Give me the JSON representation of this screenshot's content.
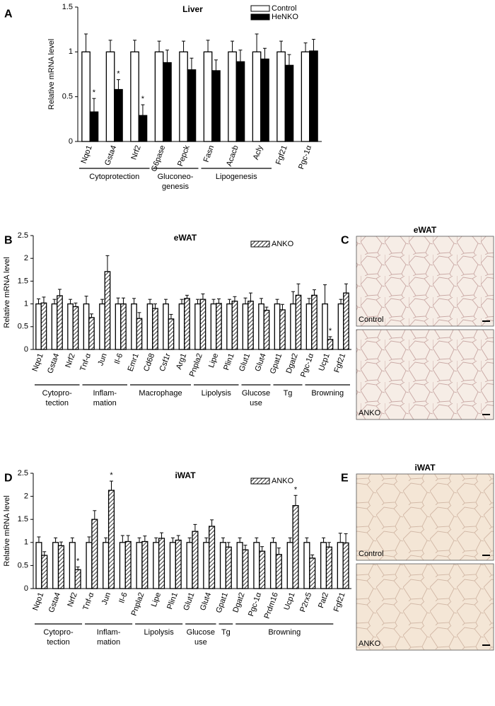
{
  "chart_data": [
    {
      "type": "bar",
      "panel": "A",
      "title": "Liver",
      "y_label": "Relative mRNA level",
      "categories": [
        "Nqo1",
        "Gsta4",
        "Nrf2",
        "G6pase",
        "Pepck",
        "Fasn",
        "Acacb",
        "Acly",
        "Fgf21",
        "Pgc-1α"
      ],
      "series": [
        {
          "name": "Control",
          "color": "#ffffff",
          "hatch": false,
          "values": [
            1,
            1,
            1,
            1,
            1,
            1,
            1,
            1,
            1,
            1
          ],
          "errors": [
            0.2,
            0.13,
            0.13,
            0.12,
            0.12,
            0.13,
            0.12,
            0.2,
            0.12,
            0.1
          ],
          "marks": [
            null,
            null,
            null,
            null,
            null,
            null,
            null,
            null,
            null,
            null
          ]
        },
        {
          "name": "HeNKO",
          "color": "#000000",
          "hatch": false,
          "values": [
            0.33,
            0.58,
            0.29,
            0.88,
            0.8,
            0.79,
            0.89,
            0.92,
            0.85,
            1.01
          ],
          "errors": [
            0.15,
            0.11,
            0.12,
            0.14,
            0.13,
            0.12,
            0.13,
            0.12,
            0.12,
            0.13
          ],
          "marks": [
            "*",
            "*",
            "*",
            null,
            null,
            null,
            null,
            null,
            null,
            null
          ]
        }
      ],
      "groups": [
        {
          "label": [
            "Cytoprotection"
          ],
          "first": 0,
          "last": 2
        },
        {
          "label": [
            "Gluconeo-",
            "genesis"
          ],
          "first": 3,
          "last": 4
        },
        {
          "label": [
            "Lipogenesis"
          ],
          "first": 5,
          "last": 7
        }
      ],
      "ylim": [
        0,
        1.5
      ],
      "yticks": [
        0,
        0.5,
        1,
        1.5
      ],
      "legend": "upper right"
    },
    {
      "type": "bar",
      "panel": "B",
      "title": "eWAT",
      "y_label": "Relative mRNA level",
      "categories": [
        "Nqo1",
        "Gsta4",
        "Nrf2",
        "Tnf-α",
        "Jun",
        "Il-6",
        "Emr1",
        "Cd68",
        "Csf1r",
        "Arg1",
        "Pnpla2",
        "Lipe",
        "Plin1",
        "Glut1",
        "Glut4",
        "Gpat1",
        "Dgat2",
        "Pgc-1α",
        "Ucp1",
        "Fgf21"
      ],
      "series": [
        {
          "color": "#ffffff",
          "hatch": false,
          "values": [
            1,
            1,
            1,
            1,
            1,
            1,
            1,
            1,
            1,
            1,
            1,
            1,
            1,
            1,
            1,
            1,
            1,
            1,
            1,
            1
          ],
          "errors": [
            0.11,
            0.1,
            0.1,
            0.17,
            0.1,
            0.13,
            0.12,
            0.1,
            0.1,
            0.1,
            0.1,
            0.1,
            0.1,
            0.13,
            0.12,
            0.1,
            0.27,
            0.12,
            0.42,
            0.1
          ],
          "marks": [
            null,
            null,
            null,
            null,
            null,
            null,
            null,
            null,
            null,
            null,
            null,
            null,
            null,
            null,
            null,
            null,
            null,
            null,
            null,
            null
          ]
        },
        {
          "name": "ANKO",
          "color": "#ffffff",
          "hatch": true,
          "values": [
            1.02,
            1.18,
            0.94,
            0.7,
            1.71,
            1,
            0.68,
            0.9,
            0.67,
            1.12,
            1.1,
            1.01,
            1.06,
            1.06,
            0.86,
            0.87,
            1.19,
            1.19,
            0.22,
            1.24
          ],
          "errors": [
            0.13,
            0.14,
            0.08,
            0.08,
            0.35,
            0.13,
            0.13,
            0.1,
            0.1,
            0.07,
            0.12,
            0.1,
            0.1,
            0.18,
            0.07,
            0.12,
            0.25,
            0.12,
            0.06,
            0.2
          ],
          "marks": [
            null,
            null,
            null,
            null,
            null,
            null,
            null,
            null,
            null,
            null,
            null,
            null,
            null,
            null,
            null,
            null,
            null,
            null,
            "*",
            null
          ]
        }
      ],
      "groups": [
        {
          "label": [
            "Cytopro-",
            "tection"
          ],
          "first": 0,
          "last": 2
        },
        {
          "label": [
            "Inflam-",
            "mation"
          ],
          "first": 3,
          "last": 5
        },
        {
          "label": [
            "Macrophage"
          ],
          "first": 6,
          "last": 9
        },
        {
          "label": [
            "Lipolysis"
          ],
          "first": 10,
          "last": 12
        },
        {
          "label": [
            "Glucose",
            "use"
          ],
          "first": 13,
          "last": 14
        },
        {
          "label": [
            "Tg"
          ],
          "first": 15,
          "last": 16
        },
        {
          "label": [
            "Browning"
          ],
          "first": 17,
          "last": 19
        }
      ],
      "ylim": [
        0,
        2.5
      ],
      "yticks": [
        0,
        0.5,
        1,
        1.5,
        2,
        2.5
      ],
      "legend": "upper right"
    },
    {
      "type": "bar",
      "panel": "D",
      "title": "iWAT",
      "y_label": "Relative mRNA level",
      "categories": [
        "Nqo1",
        "Gsta4",
        "Nrf2",
        "Tnf-α",
        "Jun",
        "Il-6",
        "Pnpla2",
        "Lipe",
        "Plin1",
        "Glut1",
        "Glut4",
        "Gpat1",
        "Dgat2",
        "Pgc-1α",
        "Prdm16",
        "Ucp1",
        "P2rx5",
        "Pat2",
        "Fgf21"
      ],
      "series": [
        {
          "color": "#ffffff",
          "hatch": false,
          "values": [
            1,
            1,
            1,
            1,
            1,
            1,
            1,
            1,
            1,
            1,
            1,
            1,
            1,
            1,
            1,
            1,
            1,
            1,
            1
          ],
          "errors": [
            0.12,
            0.1,
            0.1,
            0.12,
            0.1,
            0.15,
            0.1,
            0.1,
            0.1,
            0.1,
            0.1,
            0.1,
            0.1,
            0.1,
            0.1,
            0.1,
            0.1,
            0.1,
            0.2
          ],
          "marks": [
            null,
            null,
            null,
            null,
            null,
            null,
            null,
            null,
            null,
            null,
            null,
            null,
            null,
            null,
            null,
            null,
            null,
            null,
            null
          ]
        },
        {
          "name": "ANKO",
          "color": "#ffffff",
          "hatch": true,
          "values": [
            0.72,
            0.93,
            0.41,
            1.5,
            2.13,
            1.02,
            1.02,
            1.09,
            1.05,
            1.24,
            1.35,
            0.9,
            0.84,
            0.81,
            0.74,
            1.8,
            0.66,
            0.9,
            0.99
          ],
          "errors": [
            0.08,
            0.08,
            0.06,
            0.19,
            0.2,
            0.13,
            0.12,
            0.12,
            0.1,
            0.15,
            0.14,
            0.1,
            0.1,
            0.1,
            0.14,
            0.22,
            0.07,
            0.1,
            0.2
          ],
          "marks": [
            null,
            null,
            "*",
            null,
            "*",
            null,
            null,
            null,
            null,
            null,
            null,
            null,
            null,
            null,
            null,
            "*",
            null,
            null,
            null
          ]
        }
      ],
      "groups": [
        {
          "label": [
            "Cytopro-",
            "tection"
          ],
          "first": 0,
          "last": 2
        },
        {
          "label": [
            "Inflam-",
            "mation"
          ],
          "first": 3,
          "last": 5
        },
        {
          "label": [
            "Lipolysis"
          ],
          "first": 6,
          "last": 8
        },
        {
          "label": [
            "Glucose",
            "use"
          ],
          "first": 9,
          "last": 10
        },
        {
          "label": [
            "Tg"
          ],
          "first": 11,
          "last": 11
        },
        {
          "label": [
            "Browning"
          ],
          "first": 12,
          "last": 17
        }
      ],
      "ylim": [
        0,
        2.5
      ],
      "yticks": [
        0,
        0.5,
        1,
        1.5,
        2,
        2.5
      ],
      "legend": "upper right"
    }
  ],
  "image_panels": [
    {
      "panel": "C",
      "title": "eWAT",
      "images": [
        "Control",
        "ANKO"
      ]
    },
    {
      "panel": "E",
      "title": "iWAT",
      "images": [
        "Control",
        "ANKO"
      ]
    }
  ]
}
